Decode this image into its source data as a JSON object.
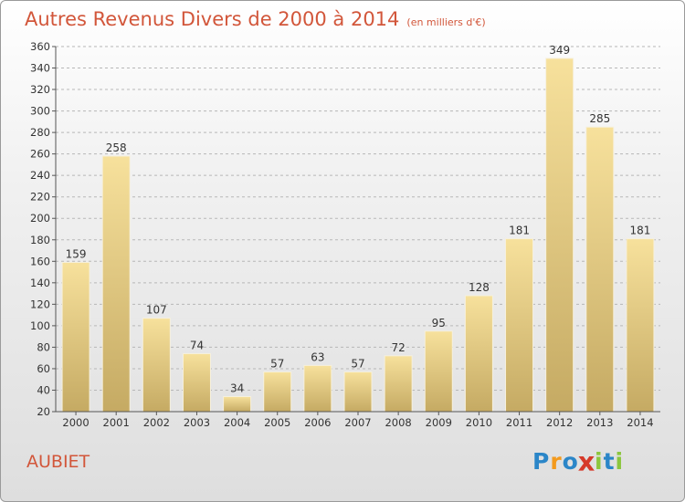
{
  "title": "Autres Revenus Divers de 2000 à 2014",
  "subtitle": "(en milliers d'€)",
  "commune": "AUBIET",
  "logo": {
    "name": "Proxiti",
    "letters": [
      {
        "ch": "P",
        "color": "#2b86c8"
      },
      {
        "ch": "r",
        "color": "#f39a1d"
      },
      {
        "ch": "o",
        "color": "#2b86c8"
      },
      {
        "ch": "x",
        "color": "#d63a2a"
      },
      {
        "ch": "i",
        "color": "#8cc63e"
      },
      {
        "ch": "t",
        "color": "#2b86c8"
      },
      {
        "ch": "i",
        "color": "#8cc63e"
      }
    ]
  },
  "colors": {
    "title": "#d2563a",
    "bar_light": "#f7e19c",
    "bar_dark": "#c5aa63",
    "grid": "#b7b7b7"
  },
  "chart_data": {
    "type": "bar",
    "categories": [
      "2000",
      "2001",
      "2002",
      "2003",
      "2004",
      "2005",
      "2006",
      "2007",
      "2008",
      "2009",
      "2010",
      "2011",
      "2012",
      "2013",
      "2014"
    ],
    "values": [
      159,
      258,
      107,
      74,
      34,
      57,
      63,
      57,
      72,
      95,
      128,
      181,
      349,
      285,
      181
    ],
    "ylim": [
      20,
      360
    ],
    "yticks": [
      20,
      40,
      60,
      80,
      100,
      120,
      140,
      160,
      180,
      200,
      220,
      240,
      260,
      280,
      300,
      320,
      340,
      360
    ],
    "grid": true,
    "data_labels": true
  }
}
